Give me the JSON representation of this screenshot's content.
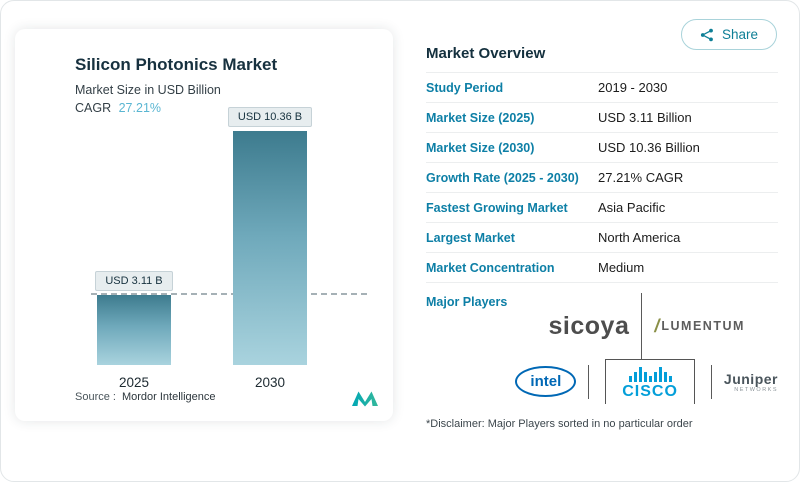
{
  "accent_color": "#0d7fa6",
  "cagr_color": "#5ab6d2",
  "share": {
    "label": "Share"
  },
  "chart_card": {
    "title": "Silicon Photonics Market",
    "subtitle": "Market Size in USD Billion",
    "cagr_label": "CAGR",
    "cagr_value": "27.21%",
    "source_label": "Source :",
    "source_value": "Mordor Intelligence"
  },
  "chart_data": {
    "type": "bar",
    "categories": [
      "2025",
      "2030"
    ],
    "values": [
      3.11,
      10.36
    ],
    "bar_labels": [
      "USD 3.11 B",
      "USD 10.36 B"
    ],
    "title": "Silicon Photonics Market",
    "ylabel": "Market Size in USD Billion",
    "ylim": [
      0,
      10.36
    ],
    "reference_line_at": 3.11,
    "bar_gradient": [
      "#3d7b8e",
      "#a9d3de"
    ]
  },
  "overview": {
    "title": "Market Overview",
    "rows": [
      {
        "label": "Study Period",
        "value": "2019 - 2030"
      },
      {
        "label": "Market Size (2025)",
        "value": "USD 3.11 Billion"
      },
      {
        "label": "Market Size (2030)",
        "value": "USD 10.36 Billion"
      },
      {
        "label": "Growth Rate (2025 - 2030)",
        "value": "27.21% CAGR"
      },
      {
        "label": "Fastest Growing Market",
        "value": "Asia Pacific"
      },
      {
        "label": "Largest Market",
        "value": "North America"
      },
      {
        "label": "Market Concentration",
        "value": "Medium"
      }
    ],
    "major_players_label": "Major Players",
    "players": {
      "sicoya": "sicoya",
      "lumentum": "LUMENTUM",
      "intel": "intel",
      "cisco": "cisco",
      "juniper": "Juniper",
      "juniper_sub": "NETWORKS"
    },
    "disclaimer": "*Disclaimer: Major Players sorted in no particular order"
  }
}
